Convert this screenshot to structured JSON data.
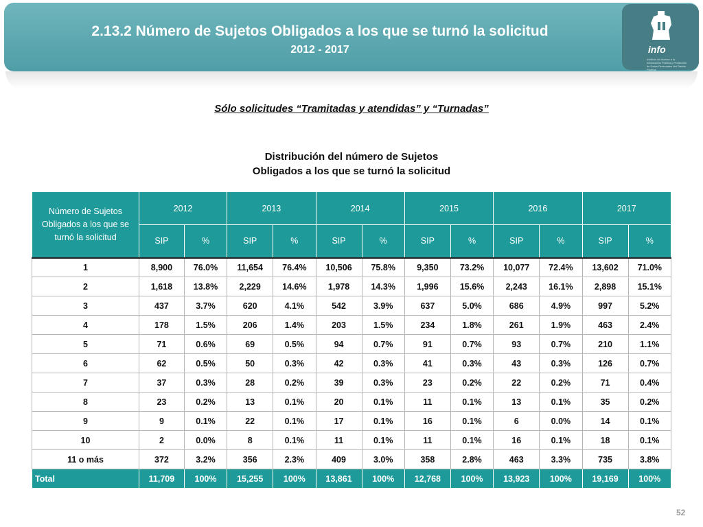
{
  "header": {
    "title": "2.13.2 Número de Sujetos Obligados a los que se turnó la solicitud",
    "subtitle": "2012 - 2017",
    "logo_text": "info",
    "logo_small": "Instituto de Acceso a la Información Pública y Protección de Datos Personales del Distrito Federal"
  },
  "note": "Sólo solicitudes “Tramitadas y atendidas” y “Turnadas”",
  "caption": {
    "line1": "Distribución del número de Sujetos",
    "line2": "Obligados a los que se turnó la solicitud"
  },
  "table": {
    "corner_header": "Número de Sujetos Obligados a los que se turnó la solicitud",
    "years": [
      "2012",
      "2013",
      "2014",
      "2015",
      "2016",
      "2017"
    ],
    "sub_headers": [
      "SIP",
      "%"
    ],
    "rows": [
      [
        "1",
        "8,900",
        "76.0%",
        "11,654",
        "76.4%",
        "10,506",
        "75.8%",
        "9,350",
        "73.2%",
        "10,077",
        "72.4%",
        "13,602",
        "71.0%"
      ],
      [
        "2",
        "1,618",
        "13.8%",
        "2,229",
        "14.6%",
        "1,978",
        "14.3%",
        "1,996",
        "15.6%",
        "2,243",
        "16.1%",
        "2,898",
        "15.1%"
      ],
      [
        "3",
        "437",
        "3.7%",
        "620",
        "4.1%",
        "542",
        "3.9%",
        "637",
        "5.0%",
        "686",
        "4.9%",
        "997",
        "5.2%"
      ],
      [
        "4",
        "178",
        "1.5%",
        "206",
        "1.4%",
        "203",
        "1.5%",
        "234",
        "1.8%",
        "261",
        "1.9%",
        "463",
        "2.4%"
      ],
      [
        "5",
        "71",
        "0.6%",
        "69",
        "0.5%",
        "94",
        "0.7%",
        "91",
        "0.7%",
        "93",
        "0.7%",
        "210",
        "1.1%"
      ],
      [
        "6",
        "62",
        "0.5%",
        "50",
        "0.3%",
        "42",
        "0.3%",
        "41",
        "0.3%",
        "43",
        "0.3%",
        "126",
        "0.7%"
      ],
      [
        "7",
        "37",
        "0.3%",
        "28",
        "0.2%",
        "39",
        "0.3%",
        "23",
        "0.2%",
        "22",
        "0.2%",
        "71",
        "0.4%"
      ],
      [
        "8",
        "23",
        "0.2%",
        "13",
        "0.1%",
        "20",
        "0.1%",
        "11",
        "0.1%",
        "13",
        "0.1%",
        "35",
        "0.2%"
      ],
      [
        "9",
        "9",
        "0.1%",
        "22",
        "0.1%",
        "17",
        "0.1%",
        "16",
        "0.1%",
        "6",
        "0.0%",
        "14",
        "0.1%"
      ],
      [
        "10",
        "2",
        "0.0%",
        "8",
        "0.1%",
        "11",
        "0.1%",
        "11",
        "0.1%",
        "16",
        "0.1%",
        "18",
        "0.1%"
      ],
      [
        "11 o más",
        "372",
        "3.2%",
        "356",
        "2.3%",
        "409",
        "3.0%",
        "358",
        "2.8%",
        "463",
        "3.3%",
        "735",
        "3.8%"
      ]
    ],
    "total": [
      "Total",
      "11,709",
      "100%",
      "15,255",
      "100%",
      "13,861",
      "100%",
      "12,768",
      "100%",
      "13,923",
      "100%",
      "19,169",
      "100%"
    ]
  },
  "page_number": "52",
  "colors": {
    "banner": "#5aa8b0",
    "table_header": "#1f9a9a",
    "logo_box": "#477e86"
  }
}
